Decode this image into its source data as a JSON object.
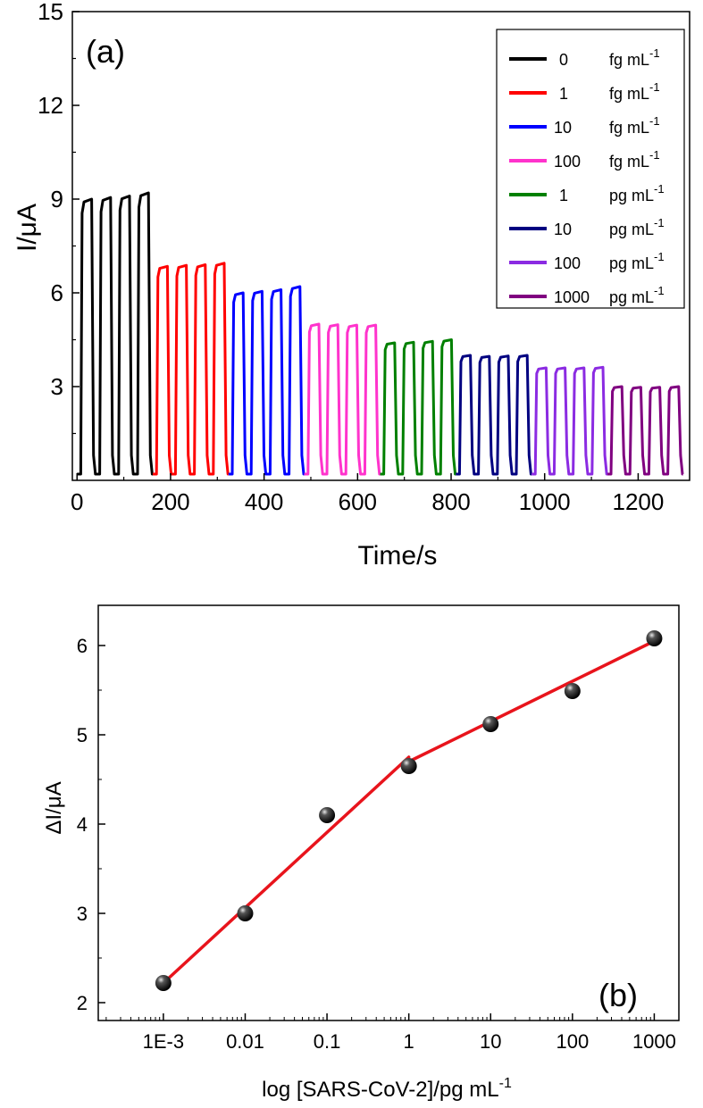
{
  "chart_data": [
    {
      "panel": "a",
      "type": "line",
      "panel_label": "(a)",
      "xlabel": "Time/s",
      "ylabel": "I/μA",
      "xlim": [
        -10,
        1310
      ],
      "ylim": [
        0,
        15
      ],
      "xticks": [
        0,
        200,
        400,
        600,
        800,
        1000,
        1200
      ],
      "yticks": [
        3,
        6,
        9,
        12,
        15
      ],
      "grid": false,
      "legend_position": "top-right",
      "series": [
        {
          "name": "0",
          "unit": "fg mL",
          "exp": "-1",
          "color": "#000000",
          "start": 0,
          "end": 162,
          "on": [
            9.0,
            9.05,
            9.1,
            9.2
          ]
        },
        {
          "name": "1",
          "unit": "fg mL",
          "exp": "-1",
          "color": "#ff0000",
          "start": 162,
          "end": 324,
          "on": [
            6.85,
            6.88,
            6.9,
            6.95
          ]
        },
        {
          "name": "10",
          "unit": "fg mL",
          "exp": "-1",
          "color": "#0000ff",
          "start": 324,
          "end": 486,
          "on": [
            6.0,
            6.05,
            6.1,
            6.2
          ]
        },
        {
          "name": "100",
          "unit": "fg mL",
          "exp": "-1",
          "color": "#ff33cc",
          "start": 486,
          "end": 648,
          "on": [
            5.0,
            4.98,
            4.97,
            4.97
          ]
        },
        {
          "name": "1",
          "unit": "pg mL",
          "exp": "-1",
          "color": "#008000",
          "start": 648,
          "end": 810,
          "on": [
            4.4,
            4.42,
            4.45,
            4.5
          ]
        },
        {
          "name": "10",
          "unit": "pg mL",
          "exp": "-1",
          "color": "#000080",
          "start": 810,
          "end": 972,
          "on": [
            4.0,
            3.97,
            3.98,
            4.0
          ]
        },
        {
          "name": "100",
          "unit": "pg mL",
          "exp": "-1",
          "color": "#8b2be2",
          "start": 972,
          "end": 1134,
          "on": [
            3.6,
            3.6,
            3.6,
            3.62
          ]
        },
        {
          "name": "1000",
          "unit": "pg mL",
          "exp": "-1",
          "color": "#800080",
          "start": 1134,
          "end": 1296,
          "on": [
            3.0,
            2.98,
            2.98,
            3.0
          ]
        }
      ],
      "off_level": 0.2
    },
    {
      "panel": "b",
      "type": "scatter",
      "panel_label": "(b)",
      "xlabel": "log [SARS-CoV-2]/pg mL",
      "xlabel_exp": "-1",
      "ylabel": "ΔI/μA",
      "xscale": "log",
      "xlim": [
        0.00016,
        2000
      ],
      "ylim": [
        1.8,
        6.45
      ],
      "xticks": [
        0.001,
        0.01,
        0.1,
        1,
        10,
        100,
        1000
      ],
      "xtick_labels": [
        "1E-3",
        "0.01",
        "0.1",
        "1",
        "10",
        "100",
        "1000"
      ],
      "yticks": [
        2,
        3,
        4,
        5,
        6
      ],
      "grid": false,
      "points": [
        {
          "x": 0.001,
          "y": 2.22
        },
        {
          "x": 0.01,
          "y": 3.0
        },
        {
          "x": 0.1,
          "y": 4.1
        },
        {
          "x": 1,
          "y": 4.65
        },
        {
          "x": 10,
          "y": 5.12
        },
        {
          "x": 100,
          "y": 5.49
        },
        {
          "x": 1000,
          "y": 6.08
        }
      ],
      "fit_lines": [
        {
          "color": "#e8141c",
          "points": [
            [
              0.001,
              2.22
            ],
            [
              1,
              4.75
            ]
          ]
        },
        {
          "color": "#e8141c",
          "points": [
            [
              1,
              4.7
            ],
            [
              1000,
              6.05
            ]
          ]
        }
      ]
    }
  ]
}
